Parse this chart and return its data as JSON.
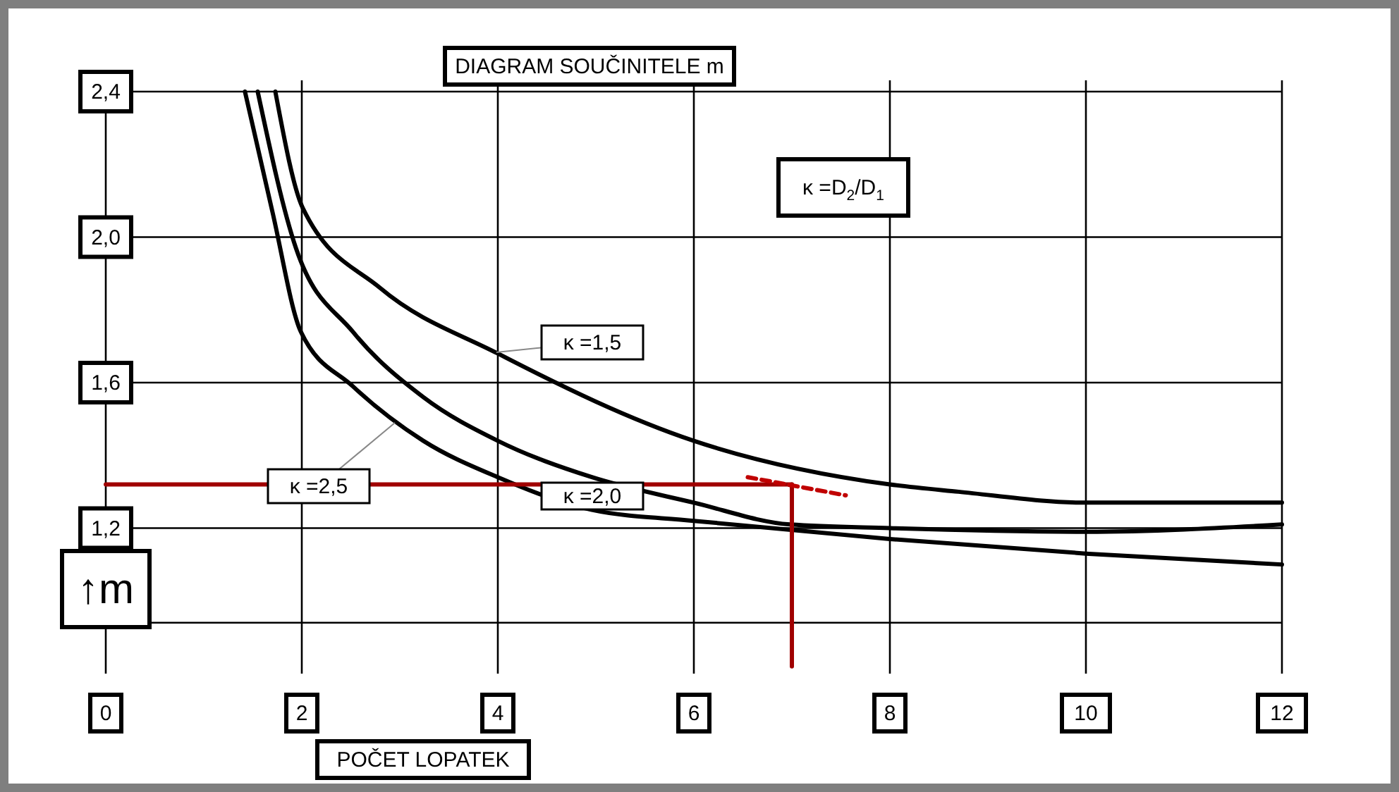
{
  "chart_data": {
    "type": "line",
    "title": "DIAGRAM SOUČINITELE  m",
    "xlabel": "POČET LOPATEK",
    "ylabel": "↑m",
    "annotations": [
      "κ =D$_{2}$/D$_{1}$"
    ],
    "xlim": [
      0,
      12
    ],
    "xticks": [
      0,
      2,
      4,
      6,
      8,
      10,
      12
    ],
    "ylim": [
      0.8,
      2.4
    ],
    "yticks": [
      {
        "value": 0.94,
        "label": null
      },
      {
        "value": 1.2,
        "label": "1,2"
      },
      {
        "value": 1.6,
        "label": "1,6"
      },
      {
        "value": 2.0,
        "label": "2,0"
      },
      {
        "value": 2.4,
        "label": "2,4"
      }
    ],
    "grid": true,
    "marker": "none",
    "line_style": "solid",
    "series": [
      {
        "name": "κ =1,5",
        "color": "#000000",
        "x": [
          1.73,
          2.01,
          2.8,
          4,
          6,
          8,
          8.7,
          10,
          12
        ],
        "values": [
          2.4,
          2.08,
          1.86,
          1.68,
          1.44,
          1.32,
          1.3,
          1.27,
          1.27
        ]
      },
      {
        "name": "κ =2,0",
        "color": "#000000",
        "x": [
          1.55,
          1.94,
          2.52,
          3.24,
          4,
          4.96,
          6,
          6.98,
          8,
          10,
          12
        ],
        "values": [
          2.4,
          1.97,
          1.74,
          1.56,
          1.44,
          1.34,
          1.27,
          1.21,
          1.2,
          1.19,
          1.21
        ]
      },
      {
        "name": "κ =2,5",
        "color": "#000000",
        "x": [
          1.42,
          1.7,
          1.99,
          2.52,
          3.24,
          4,
          4.96,
          6,
          8,
          10,
          12
        ],
        "values": [
          2.4,
          2.07,
          1.74,
          1.59,
          1.44,
          1.34,
          1.25,
          1.22,
          1.17,
          1.13,
          1.1
        ]
      },
      {
        "color": "#a00000",
        "x": [
          0,
          7
        ],
        "values": [
          1.32,
          1.32
        ]
      },
      {
        "color": "#a00000",
        "x": [
          7,
          7
        ],
        "values": [
          1.32,
          0.82
        ]
      },
      {
        "color": "#c00000",
        "x": [
          6.55,
          7.55
        ],
        "values": [
          1.34,
          1.29
        ],
        "line_style": "dashed"
      }
    ]
  }
}
